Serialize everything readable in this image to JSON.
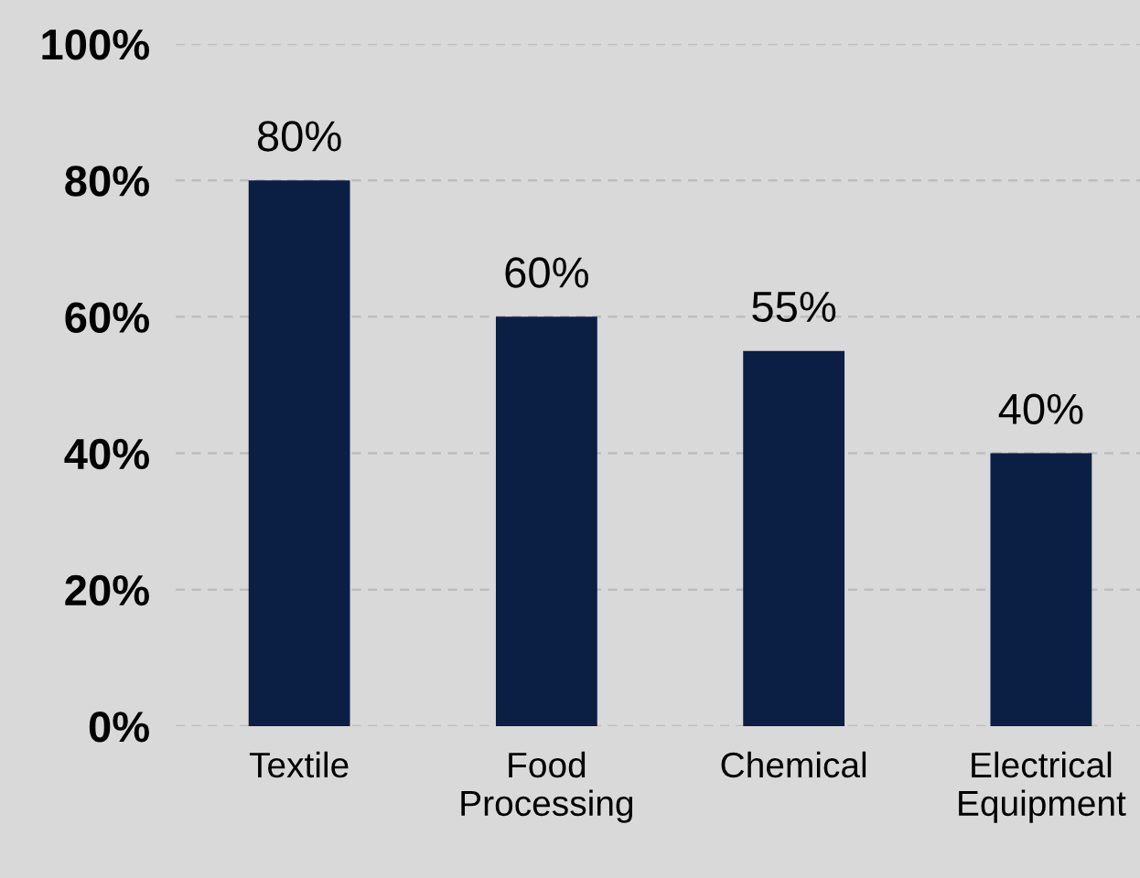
{
  "chart_data": {
    "type": "bar",
    "categories": [
      "Textile",
      "Food\nProcessing",
      "Chemical",
      "Electrical\nEquipment"
    ],
    "values": [
      80,
      60,
      55,
      40
    ],
    "value_labels": [
      "80%",
      "60%",
      "55%",
      "40%"
    ],
    "color": "#0b1f44",
    "ylim": [
      0,
      100
    ],
    "yticks": [
      {
        "value": 0,
        "label": "0%"
      },
      {
        "value": 20,
        "label": "20%"
      },
      {
        "value": 40,
        "label": "40%"
      },
      {
        "value": 60,
        "label": "60%"
      },
      {
        "value": 80,
        "label": "80%"
      },
      {
        "value": 100,
        "label": "100%"
      }
    ],
    "grid": "y",
    "legend": false
  }
}
